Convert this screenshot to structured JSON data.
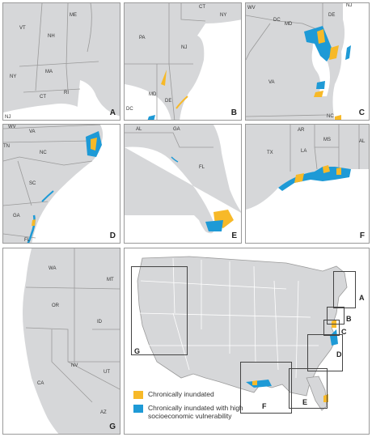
{
  "colors": {
    "land": "#d6d7d9",
    "water": "#ffffff",
    "border": "#9a9a9a",
    "chronic": "#f7b928",
    "vulnerable": "#1e9ad6"
  },
  "panels": [
    {
      "id": "A",
      "label": "A",
      "states": [
        "ME",
        "VT",
        "NH",
        "NY",
        "MA",
        "CT",
        "RI",
        "NJ"
      ]
    },
    {
      "id": "B",
      "label": "B",
      "states": [
        "NY",
        "CT",
        "PA",
        "NJ",
        "MD",
        "DE",
        "DC"
      ]
    },
    {
      "id": "C",
      "label": "C",
      "states": [
        "WV",
        "DC",
        "MD",
        "DE",
        "NJ",
        "VA",
        "NC"
      ]
    },
    {
      "id": "D",
      "label": "D",
      "states": [
        "WV",
        "VA",
        "TN",
        "NC",
        "SC",
        "GA",
        "FL"
      ]
    },
    {
      "id": "E",
      "label": "E",
      "states": [
        "AL",
        "GA",
        "FL"
      ]
    },
    {
      "id": "F",
      "label": "F",
      "states": [
        "AR",
        "MS",
        "AL",
        "TX",
        "LA"
      ]
    },
    {
      "id": "G",
      "label": "G",
      "states": [
        "WA",
        "MT",
        "OR",
        "ID",
        "NV",
        "UT",
        "CA",
        "AZ"
      ]
    }
  ],
  "overview_boxes": [
    "A",
    "B",
    "C",
    "D",
    "E",
    "F",
    "G"
  ],
  "legend": {
    "chronic": "Chronically inundated",
    "vulnerable": "Chronically inundated with high socioeconomic vulnerability"
  }
}
